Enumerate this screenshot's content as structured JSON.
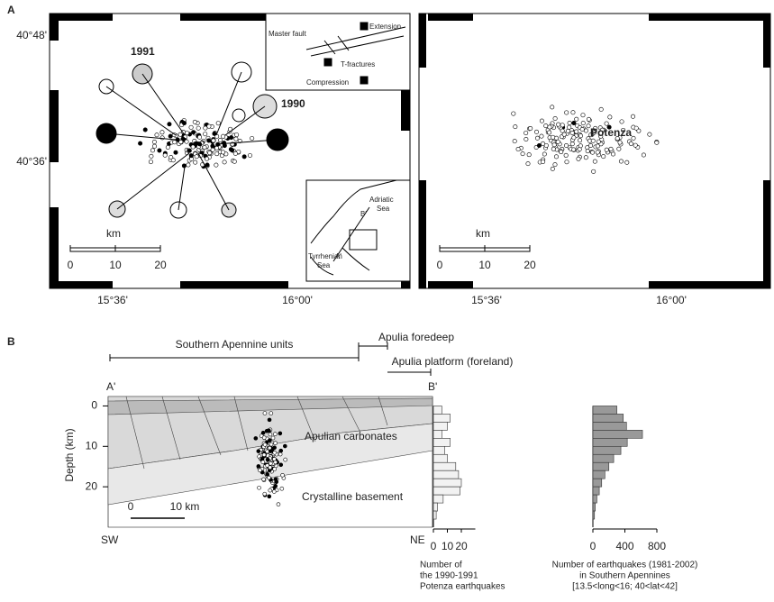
{
  "panel_a": {
    "label": "A",
    "map_left": {
      "lat_labels": [
        "40°48'",
        "40°36'"
      ],
      "lon_labels": [
        "15°36'",
        "16°00'"
      ],
      "scale_unit": "km",
      "scale_ticks": [
        0,
        10,
        20
      ],
      "mechanism_labels": [
        "1991",
        "1990"
      ],
      "inset_fault_labels": [
        "Master fault",
        "Extension",
        "T-fractures",
        "Compression"
      ],
      "inset_map_labels": [
        "Adriatic",
        "Sea",
        "B'",
        "Tyrrhenian",
        "Sea",
        "A'"
      ]
    },
    "map_right": {
      "city": "Potenza",
      "scale_unit": "km",
      "scale_ticks": [
        0,
        10,
        20
      ],
      "lon_labels": [
        "15°36'",
        "16°00'"
      ]
    }
  },
  "panel_b": {
    "label": "B",
    "units": [
      "Southern Apennine units",
      "Apulia foredeep",
      "Apulia platform (foreland)"
    ],
    "section_ends": [
      "A'",
      "B'"
    ],
    "directions": [
      "SW",
      "NE"
    ],
    "layers": [
      "Apulian carbonates",
      "Crystalline basement"
    ],
    "scale_labels": [
      "0",
      "10 km"
    ],
    "depth_axis": {
      "title": "Depth (km)",
      "ylim": [
        -3,
        30
      ],
      "yticks": [
        0,
        10,
        20
      ]
    },
    "hist_local": {
      "bins": [
        0,
        2,
        4,
        6,
        8,
        10,
        12,
        14,
        16,
        18,
        20,
        22,
        24,
        26,
        28
      ],
      "counts": [
        6,
        12,
        10,
        6,
        12,
        8,
        10,
        16,
        18,
        20,
        19,
        7,
        3,
        2
      ],
      "xlim": [
        0,
        30
      ],
      "xticks": [
        0,
        10,
        20
      ],
      "caption": [
        "Number of",
        "the 1990-1991",
        "Potenza earthquakes"
      ]
    },
    "hist_regional": {
      "bins": [
        0,
        2,
        4,
        6,
        8,
        10,
        12,
        14,
        16,
        18,
        20,
        22,
        24,
        26,
        28
      ],
      "counts": [
        300,
        380,
        420,
        620,
        430,
        350,
        260,
        200,
        150,
        110,
        80,
        50,
        30,
        20
      ],
      "xlim": [
        0,
        800
      ],
      "xticks": [
        0,
        400,
        800
      ],
      "caption": [
        "Number of earthquakes (1981-2002)",
        "in Southern Apennines",
        "[13.5<long<16; 40<lat<42]"
      ]
    }
  }
}
